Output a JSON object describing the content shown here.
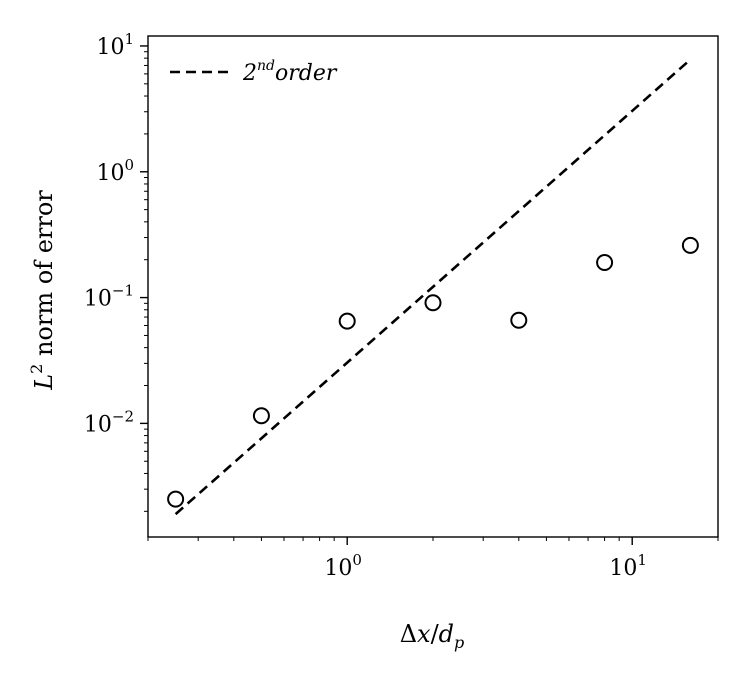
{
  "chart_data": {
    "type": "scatter",
    "x_scale": "log",
    "y_scale": "log",
    "xlim": [
      0.2,
      20
    ],
    "ylim": [
      0.00125,
      12
    ],
    "xlabel": {
      "main": "Δ",
      "x": "x",
      "slash": "/",
      "d": "d",
      "sub": "p"
    },
    "ylabel": {
      "L": "L",
      "sup": "2",
      "rest": " norm of error"
    },
    "x_major_ticks": [
      {
        "value": 1,
        "base": "10",
        "exp": "0"
      },
      {
        "value": 10,
        "base": "10",
        "exp": "1"
      }
    ],
    "y_major_ticks": [
      {
        "value": 0.01,
        "base": "10",
        "exp": "−2"
      },
      {
        "value": 0.1,
        "base": "10",
        "exp": "−1"
      },
      {
        "value": 1,
        "base": "10",
        "exp": "0"
      },
      {
        "value": 10,
        "base": "10",
        "exp": "1"
      }
    ],
    "legend": {
      "position": "top-left",
      "entries": [
        {
          "base": "2",
          "sup": "nd",
          "rest": "order",
          "style": "dashed"
        }
      ]
    },
    "series": [
      {
        "kind": "points",
        "marker": "open-circle",
        "x": [
          0.25,
          0.5,
          1,
          2,
          4,
          8,
          16
        ],
        "y": [
          0.0025,
          0.0115,
          0.065,
          0.091,
          0.066,
          0.19,
          0.26
        ]
      },
      {
        "kind": "line",
        "style": "dashed",
        "x": [
          0.25,
          16
        ],
        "y": [
          0.0019,
          7.8
        ]
      }
    ],
    "grid": false
  }
}
